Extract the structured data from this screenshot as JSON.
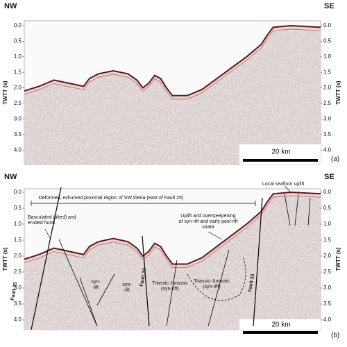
{
  "panels": [
    {
      "label": "(a)",
      "left": "NW",
      "right": "SE",
      "axis_title": "TWTT (s)",
      "ticks": [
        "0.0",
        "0.5",
        "1.0",
        "1.5",
        "2.0",
        "2.5",
        "3.0",
        "3.5",
        "4.0"
      ],
      "scale_bar": "20 km"
    },
    {
      "label": "(b)",
      "left": "NW",
      "right": "SE",
      "axis_title": "TWTT (s)",
      "ticks": [
        "0.0",
        "0.5",
        "1.0",
        "1.5",
        "2.0",
        "2.5",
        "3.0",
        "3.5",
        "4.0"
      ],
      "scale_bar": "20 km",
      "annotations": [
        {
          "lines": [
            "Deformed, exhumed proximal region of SW Iberia (east of Fault 25)"
          ]
        },
        {
          "lines": [
            "Local seafloor uplift"
          ]
        },
        {
          "lines": [
            "Basculated (tilted) and",
            "eroded horst"
          ]
        },
        {
          "lines": [
            "Uplift and oversteepening",
            "of syn-rift and early post-rift",
            "strata"
          ]
        },
        {
          "lines": [
            "syn-",
            "rift"
          ]
        },
        {
          "lines": [
            "syn-",
            "rift"
          ]
        },
        {
          "lines": [
            "Triassic-Jurassic",
            "(syn-rift)"
          ]
        },
        {
          "lines": [
            "Triassic-Jurassic",
            "(syn-rift)"
          ]
        }
      ],
      "faults": [
        "Fault 25",
        "Fault 24",
        "Fault 23"
      ]
    }
  ]
}
